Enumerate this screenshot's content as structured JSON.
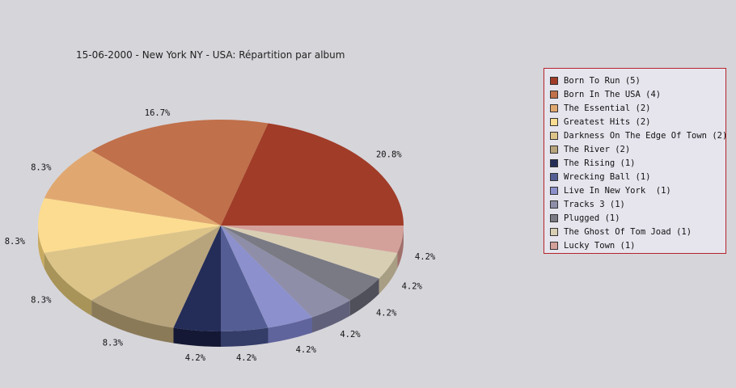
{
  "chart_data": {
    "type": "pie",
    "title": "15-06-2000 - New York NY - USA:  Répartition par album",
    "legend_position": "right",
    "slices": [
      {
        "label": "Born To Run",
        "legend": "Born To Run (5)",
        "count": 5,
        "percent_label": "20.8%",
        "color": "#a03c28",
        "side": "#6e1208"
      },
      {
        "label": "Born In The USA",
        "legend": "Born In The USA (4)",
        "count": 4,
        "percent_label": "16.7%",
        "color": "#c0704a",
        "side": "#8a3e18"
      },
      {
        "label": "The Essential",
        "legend": "The Essential (2)",
        "count": 2,
        "percent_label": "8.3%",
        "color": "#e0a870",
        "side": "#b07a40"
      },
      {
        "label": "Greatest Hits",
        "legend": "Greatest Hits (2)",
        "count": 2,
        "percent_label": "8.3%",
        "color": "#fcdc90",
        "side": "#c8aa60"
      },
      {
        "label": "Darkness On The Edge Of Town",
        "legend": "Darkness On The Edge Of Town (2)",
        "count": 2,
        "percent_label": "8.3%",
        "color": "#dcc488",
        "side": "#a89458"
      },
      {
        "label": "The River",
        "legend": "The River (2)",
        "count": 2,
        "percent_label": "8.3%",
        "color": "#b8a47c",
        "side": "#8a7a58"
      },
      {
        "label": "The Rising",
        "legend": "The Rising (1)",
        "count": 1,
        "percent_label": "4.2%",
        "color": "#242c58",
        "side": "#141834"
      },
      {
        "label": "Wrecking Ball",
        "legend": "Wrecking Ball (1)",
        "count": 1,
        "percent_label": "4.2%",
        "color": "#545e94",
        "side": "#343c68"
      },
      {
        "label": "Live In New York",
        "legend": "Live In New York  (1)",
        "count": 1,
        "percent_label": "4.2%",
        "color": "#8c90cc",
        "side": "#60649c"
      },
      {
        "label": "Tracks 3",
        "legend": "Tracks 3 (1)",
        "count": 1,
        "percent_label": "4.2%",
        "color": "#8e8ea8",
        "side": "#60607a"
      },
      {
        "label": "Plugged",
        "legend": "Plugged (1)",
        "count": 1,
        "percent_label": "4.2%",
        "color": "#7a7a84",
        "side": "#50505a"
      },
      {
        "label": "The Ghost Of Tom Joad",
        "legend": "The Ghost Of Tom Joad (1)",
        "count": 1,
        "percent_label": "4.2%",
        "color": "#d8ceb4",
        "side": "#a89e84"
      },
      {
        "label": "Lucky Town",
        "legend": "Lucky Town (1)",
        "count": 1,
        "percent_label": "4.2%",
        "color": "#d4a09a",
        "side": "#a0706a"
      }
    ]
  }
}
